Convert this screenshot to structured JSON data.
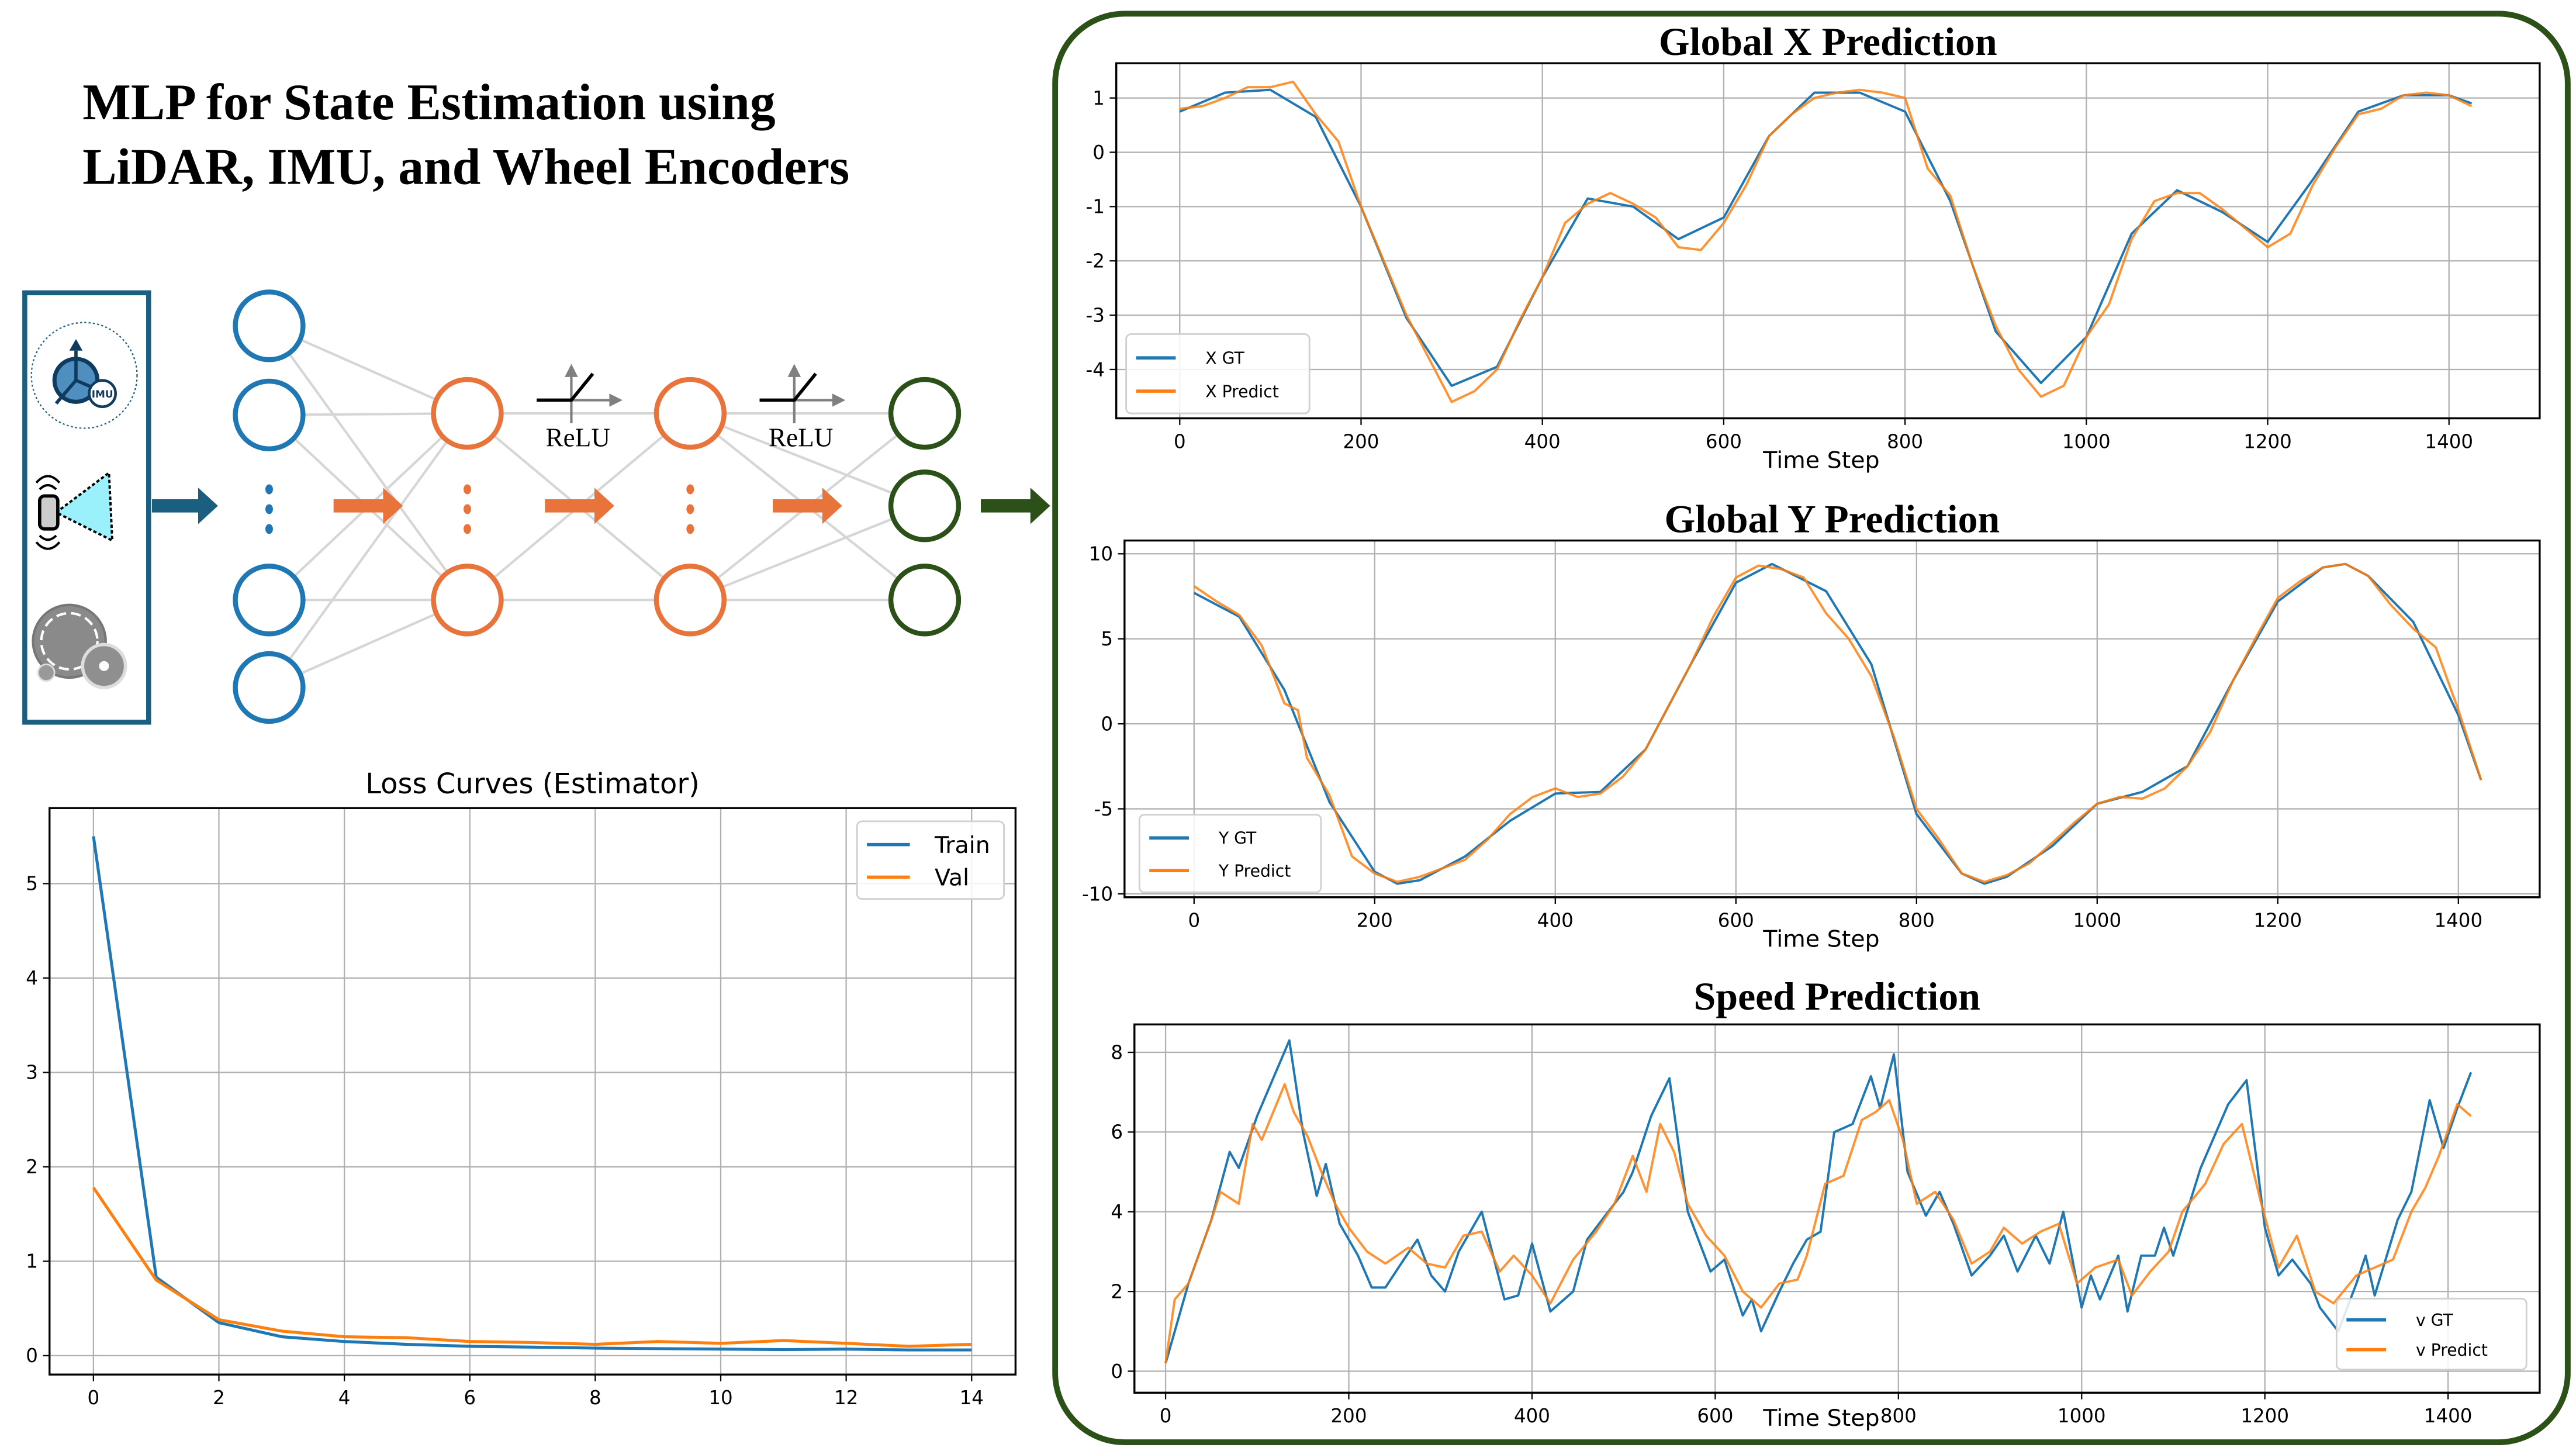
{
  "figure_title": [
    "MLP for State Estimation using",
    "LiDAR, IMU, and Wheel Encoders"
  ],
  "diagram": {
    "sensors": [
      {
        "icon": "imu-icon",
        "label": "IMU"
      },
      {
        "icon": "lidar-icon"
      },
      {
        "icon": "wheel-encoder-icon"
      }
    ],
    "activation_labels": [
      "ReLU",
      "ReLU"
    ],
    "colors": {
      "input": "#1f77b4",
      "hidden": "#e8743b",
      "output": "#2b5018",
      "sensor_box": "#1a5e80",
      "edges": "#d6d6d6"
    }
  },
  "chart_data": [
    {
      "type": "line",
      "title": "Loss Curves (Estimator)",
      "xlabel": "",
      "ylabel": "",
      "xlim": [
        -0.7,
        14.7
      ],
      "ylim": [
        -0.2,
        5.8
      ],
      "xticks": [
        0,
        2,
        4,
        6,
        8,
        10,
        12,
        14
      ],
      "yticks": [
        0,
        1,
        2,
        3,
        4,
        5
      ],
      "grid": true,
      "legend": "upper-right",
      "series": [
        {
          "name": "Train",
          "color": "#1f77b4",
          "x": [
            0,
            1,
            2,
            3,
            4,
            5,
            6,
            7,
            8,
            9,
            10,
            11,
            12,
            13,
            14
          ],
          "y": [
            5.5,
            0.83,
            0.35,
            0.2,
            0.15,
            0.12,
            0.1,
            0.09,
            0.08,
            0.075,
            0.07,
            0.065,
            0.07,
            0.06,
            0.06
          ]
        },
        {
          "name": "Val",
          "color": "#ff7f0e",
          "x": [
            0,
            1,
            2,
            3,
            4,
            5,
            6,
            7,
            8,
            9,
            10,
            11,
            12,
            13,
            14
          ],
          "y": [
            1.78,
            0.8,
            0.38,
            0.26,
            0.2,
            0.19,
            0.15,
            0.14,
            0.12,
            0.15,
            0.13,
            0.16,
            0.13,
            0.1,
            0.12
          ]
        }
      ]
    },
    {
      "type": "line",
      "title": "Global X Prediction",
      "xlabel": "Time Step",
      "ylabel": "",
      "xlim": [
        -70,
        1500
      ],
      "ylim": [
        -4.9,
        1.64
      ],
      "xticks": [
        0,
        200,
        400,
        600,
        800,
        1000,
        1200,
        1400
      ],
      "yticks": [
        1,
        0,
        -1,
        -2,
        -3,
        -4
      ],
      "grid": true,
      "legend": "lower-left",
      "series": [
        {
          "name": "X GT",
          "color": "#1f77b4",
          "x": [
            0,
            50,
            100,
            150,
            200,
            250,
            300,
            350,
            400,
            450,
            500,
            550,
            600,
            650,
            700,
            750,
            800,
            850,
            900,
            950,
            1000,
            1050,
            1100,
            1150,
            1200,
            1250,
            1300,
            1350,
            1400,
            1425
          ],
          "y": [
            0.75,
            1.1,
            1.15,
            0.65,
            -1.0,
            -3.05,
            -4.3,
            -3.95,
            -2.3,
            -0.85,
            -1.0,
            -1.6,
            -1.2,
            0.3,
            1.1,
            1.1,
            0.75,
            -0.9,
            -3.3,
            -4.25,
            -3.4,
            -1.5,
            -0.7,
            -1.1,
            -1.65,
            -0.5,
            0.75,
            1.05,
            1.05,
            0.9
          ]
        },
        {
          "name": "X Predict",
          "color": "#ff7f0e",
          "x": [
            0,
            25,
            50,
            75,
            100,
            125,
            150,
            175,
            200,
            225,
            250,
            275,
            300,
            325,
            350,
            375,
            400,
            425,
            450,
            475,
            500,
            525,
            550,
            575,
            600,
            625,
            650,
            675,
            700,
            725,
            750,
            775,
            800,
            825,
            850,
            875,
            900,
            925,
            950,
            975,
            1000,
            1025,
            1050,
            1075,
            1100,
            1125,
            1150,
            1175,
            1200,
            1225,
            1250,
            1275,
            1300,
            1325,
            1350,
            1375,
            1400,
            1425
          ],
          "y": [
            0.8,
            0.85,
            1.0,
            1.2,
            1.2,
            1.3,
            0.7,
            0.2,
            -1.0,
            -2.0,
            -3.0,
            -3.8,
            -4.6,
            -4.4,
            -4.0,
            -3.1,
            -2.3,
            -1.3,
            -0.95,
            -0.75,
            -0.95,
            -1.2,
            -1.75,
            -1.8,
            -1.3,
            -0.6,
            0.3,
            0.7,
            1.0,
            1.1,
            1.15,
            1.1,
            1.0,
            -0.3,
            -0.8,
            -2.1,
            -3.2,
            -4.0,
            -4.5,
            -4.3,
            -3.4,
            -2.8,
            -1.6,
            -0.9,
            -0.75,
            -0.75,
            -1.05,
            -1.4,
            -1.75,
            -1.5,
            -0.6,
            0.1,
            0.7,
            0.8,
            1.05,
            1.1,
            1.05,
            0.85
          ]
        }
      ]
    },
    {
      "type": "line",
      "title": "Global Y Prediction",
      "xlabel": "Time Step",
      "ylabel": "",
      "xlim": [
        -77,
        1490
      ],
      "ylim": [
        -10.2,
        10.78
      ],
      "xticks": [
        0,
        200,
        400,
        600,
        800,
        1000,
        1200,
        1400
      ],
      "yticks": [
        10,
        5,
        0,
        -5,
        -10
      ],
      "grid": true,
      "legend": "lower-left",
      "series": [
        {
          "name": "Y GT",
          "color": "#1f77b4",
          "x": [
            0,
            50,
            100,
            150,
            200,
            225,
            250,
            300,
            350,
            400,
            450,
            500,
            550,
            600,
            640,
            700,
            750,
            800,
            850,
            875,
            900,
            950,
            1000,
            1050,
            1100,
            1150,
            1200,
            1250,
            1275,
            1300,
            1350,
            1400,
            1425
          ],
          "y": [
            7.7,
            6.3,
            2.0,
            -4.6,
            -8.7,
            -9.4,
            -9.2,
            -7.8,
            -5.7,
            -4.1,
            -4.0,
            -1.5,
            3.5,
            8.3,
            9.4,
            7.8,
            3.5,
            -5.3,
            -8.8,
            -9.4,
            -9.0,
            -7.2,
            -4.7,
            -4.0,
            -2.5,
            2.5,
            7.2,
            9.2,
            9.4,
            8.7,
            6.0,
            0.5,
            -3.3
          ]
        },
        {
          "name": "Y Predict",
          "color": "#ff7f0e",
          "x": [
            0,
            25,
            50,
            75,
            100,
            115,
            125,
            150,
            175,
            200,
            225,
            250,
            275,
            300,
            325,
            350,
            375,
            400,
            425,
            450,
            475,
            500,
            525,
            550,
            575,
            600,
            625,
            650,
            675,
            700,
            725,
            750,
            775,
            800,
            825,
            850,
            875,
            900,
            925,
            950,
            975,
            1000,
            1025,
            1050,
            1075,
            1100,
            1125,
            1150,
            1175,
            1200,
            1225,
            1250,
            1275,
            1300,
            1325,
            1350,
            1375,
            1400,
            1425
          ],
          "y": [
            8.1,
            7.2,
            6.4,
            4.6,
            1.2,
            0.8,
            -2.0,
            -4.2,
            -7.8,
            -8.8,
            -9.3,
            -9.0,
            -8.5,
            -8.0,
            -6.8,
            -5.3,
            -4.3,
            -3.8,
            -4.3,
            -4.1,
            -3.1,
            -1.5,
            1.0,
            3.5,
            6.3,
            8.6,
            9.3,
            9.1,
            8.6,
            6.5,
            5.0,
            2.8,
            -0.8,
            -5.0,
            -6.8,
            -8.8,
            -9.3,
            -8.9,
            -8.2,
            -7.0,
            -5.8,
            -4.7,
            -4.3,
            -4.4,
            -3.8,
            -2.5,
            -0.5,
            2.5,
            5.0,
            7.4,
            8.4,
            9.2,
            9.4,
            8.7,
            7.0,
            5.6,
            4.5,
            0.8,
            -3.3
          ]
        }
      ]
    },
    {
      "type": "line",
      "title": "Speed Prediction",
      "xlabel": "Time Step",
      "ylabel": "",
      "xlim": [
        -34,
        1500
      ],
      "ylim": [
        -0.54,
        8.7
      ],
      "xticks": [
        0,
        200,
        400,
        600,
        800,
        1000,
        1200,
        1400
      ],
      "yticks": [
        0,
        2,
        4,
        6,
        8
      ],
      "grid": true,
      "legend": "lower-right",
      "series": [
        {
          "name": "v GT",
          "color": "#1f77b4",
          "x": [
            0,
            25,
            50,
            70,
            80,
            100,
            135,
            150,
            165,
            175,
            190,
            210,
            225,
            240,
            260,
            275,
            290,
            305,
            320,
            345,
            370,
            385,
            400,
            420,
            445,
            460,
            480,
            500,
            510,
            530,
            550,
            570,
            595,
            610,
            630,
            640,
            650,
            670,
            685,
            700,
            715,
            730,
            750,
            770,
            780,
            795,
            810,
            830,
            845,
            860,
            880,
            900,
            915,
            930,
            950,
            965,
            980,
            1000,
            1010,
            1020,
            1040,
            1050,
            1065,
            1080,
            1090,
            1100,
            1130,
            1160,
            1180,
            1200,
            1215,
            1230,
            1250,
            1260,
            1280,
            1300,
            1310,
            1320,
            1345,
            1360,
            1380,
            1395,
            1410,
            1425
          ],
          "y": [
            0.2,
            2.2,
            3.8,
            5.5,
            5.1,
            6.4,
            8.3,
            6.0,
            4.4,
            5.2,
            3.7,
            2.9,
            2.1,
            2.1,
            2.8,
            3.3,
            2.4,
            2.0,
            3.0,
            4.0,
            1.8,
            1.9,
            3.2,
            1.5,
            2.0,
            3.3,
            3.9,
            4.5,
            5.0,
            6.4,
            7.35,
            4.0,
            2.5,
            2.8,
            1.4,
            1.8,
            1.0,
            2.0,
            2.7,
            3.3,
            3.5,
            6.0,
            6.2,
            7.4,
            6.6,
            7.95,
            5.0,
            3.9,
            4.5,
            3.7,
            2.4,
            2.9,
            3.4,
            2.5,
            3.4,
            2.7,
            4.0,
            1.6,
            2.4,
            1.8,
            2.9,
            1.5,
            2.9,
            2.9,
            3.6,
            2.9,
            5.1,
            6.7,
            7.3,
            3.6,
            2.4,
            2.8,
            2.2,
            1.6,
            1.0,
            2.2,
            2.9,
            1.9,
            3.8,
            4.5,
            6.8,
            5.6,
            6.6,
            7.5
          ]
        },
        {
          "name": "v Predict",
          "color": "#ff7f0e",
          "x": [
            0,
            10,
            25,
            50,
            60,
            80,
            95,
            105,
            130,
            140,
            155,
            170,
            185,
            200,
            220,
            240,
            265,
            285,
            305,
            325,
            345,
            365,
            380,
            400,
            420,
            445,
            470,
            490,
            510,
            525,
            540,
            555,
            570,
            590,
            610,
            630,
            650,
            670,
            690,
            700,
            720,
            740,
            760,
            775,
            790,
            805,
            820,
            840,
            860,
            880,
            900,
            915,
            935,
            955,
            975,
            995,
            1015,
            1040,
            1055,
            1075,
            1095,
            1110,
            1135,
            1155,
            1175,
            1195,
            1215,
            1235,
            1255,
            1275,
            1300,
            1320,
            1340,
            1360,
            1375,
            1390,
            1410,
            1425
          ],
          "y": [
            0.2,
            1.8,
            2.2,
            3.8,
            4.5,
            4.2,
            6.2,
            5.8,
            7.2,
            6.5,
            5.9,
            5.0,
            4.2,
            3.6,
            3.0,
            2.7,
            3.1,
            2.7,
            2.6,
            3.4,
            3.5,
            2.5,
            2.9,
            2.4,
            1.7,
            2.8,
            3.5,
            4.2,
            5.4,
            4.5,
            6.2,
            5.5,
            4.2,
            3.4,
            2.9,
            2.0,
            1.6,
            2.2,
            2.3,
            2.9,
            4.7,
            4.9,
            6.3,
            6.5,
            6.8,
            5.8,
            4.2,
            4.5,
            3.8,
            2.7,
            3.0,
            3.6,
            3.2,
            3.5,
            3.7,
            2.2,
            2.6,
            2.8,
            1.9,
            2.5,
            3.0,
            4.0,
            4.7,
            5.7,
            6.2,
            4.3,
            2.6,
            3.4,
            2.0,
            1.7,
            2.4,
            2.6,
            2.8,
            4.0,
            4.6,
            5.4,
            6.7,
            6.4
          ]
        }
      ]
    }
  ]
}
